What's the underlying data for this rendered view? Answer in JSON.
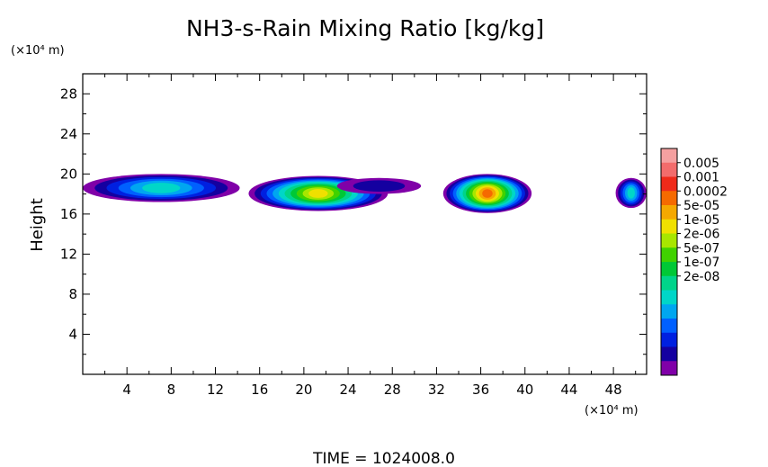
{
  "chart_data": {
    "type": "heatmap",
    "title": "NH3-s-Rain Mixing Ratio [kg/kg]",
    "ylabel": "Height",
    "y_unit": "(×10⁴ m)",
    "x_unit": "(×10⁴ m)",
    "xlim": [
      0,
      51
    ],
    "ylim": [
      0,
      30
    ],
    "x_ticks": [
      4,
      8,
      12,
      16,
      20,
      24,
      28,
      32,
      36,
      40,
      44,
      48
    ],
    "y_ticks": [
      4,
      8,
      12,
      16,
      20,
      24,
      28
    ],
    "footer": "TIME = 1024008.0",
    "colorbar": {
      "labels": [
        "0.005",
        "0.001",
        "0.0002",
        "5e-05",
        "1e-05",
        "2e-06",
        "5e-07",
        "1e-07",
        "2e-08"
      ],
      "levels": [
        {
          "color": "#f5a0a0"
        },
        {
          "color": "#f36c6c"
        },
        {
          "color": "#ef2a1a"
        },
        {
          "color": "#f56a00"
        },
        {
          "color": "#f5a800"
        },
        {
          "color": "#f0e000"
        },
        {
          "color": "#a8e600"
        },
        {
          "color": "#40d200"
        },
        {
          "color": "#00c836"
        },
        {
          "color": "#00d48a"
        },
        {
          "color": "#00d6c8"
        },
        {
          "color": "#00a6f0"
        },
        {
          "color": "#0060ff"
        },
        {
          "color": "#0020e0"
        },
        {
          "color": "#1400a0"
        },
        {
          "color": "#8000a8"
        }
      ]
    },
    "regions": [
      {
        "x0": 0.0,
        "x1": 14.2,
        "y0": 17.2,
        "y1": 20.0,
        "peak": 10
      },
      {
        "x0": 15.0,
        "x1": 27.6,
        "y0": 16.3,
        "y1": 19.8,
        "peak": 5
      },
      {
        "x0": 23.0,
        "x1": 30.6,
        "y0": 18.0,
        "y1": 19.6,
        "peak": 14
      },
      {
        "x0": 32.6,
        "x1": 40.6,
        "y0": 16.1,
        "y1": 20.0,
        "peak": 3
      },
      {
        "x0": 48.2,
        "x1": 51.0,
        "y0": 16.6,
        "y1": 19.6,
        "peak": 10
      }
    ]
  }
}
